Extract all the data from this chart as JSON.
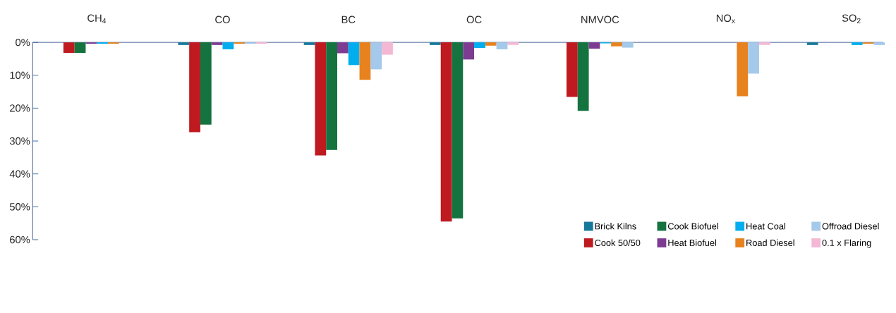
{
  "chart_data": {
    "type": "bar",
    "categories": [
      "CH$_{4}$",
      "CO",
      "BC",
      "OC",
      "NMVOC",
      "NO$_{x}$",
      "SO$_{2}$"
    ],
    "series": [
      {
        "name": "Brick Kilns",
        "color": "#17799a",
        "values": [
          0,
          0.8,
          0.8,
          0.8,
          0,
          0,
          0.8
        ]
      },
      {
        "name": "Cook 50/50",
        "color": "#be1a20",
        "values": [
          3.2,
          27.3,
          34.4,
          54.5,
          16.6,
          0,
          0
        ]
      },
      {
        "name": "Cook Biofuel",
        "color": "#14733e",
        "values": [
          3.2,
          25,
          32.7,
          53.5,
          20.8,
          0,
          0
        ]
      },
      {
        "name": "Heat Biofuel",
        "color": "#7d3c92",
        "values": [
          0.4,
          0.8,
          3.3,
          5.2,
          1.9,
          0,
          0
        ]
      },
      {
        "name": "Heat Coal",
        "color": "#00aeef",
        "values": [
          0.4,
          2.1,
          6.9,
          1.7,
          0.3,
          0,
          0.8
        ]
      },
      {
        "name": "Road Diesel",
        "color": "#e8821e",
        "values": [
          0.4,
          0.4,
          11.4,
          1.0,
          1.2,
          16.4,
          0.4
        ]
      },
      {
        "name": "Offroad Diesel",
        "color": "#a4c9ea",
        "values": [
          0,
          0.4,
          8.2,
          2.1,
          1.6,
          9.5,
          0.8
        ]
      },
      {
        "name": "0.1 x Flaring",
        "color": "#f4b8d4",
        "values": [
          0,
          0.4,
          3.8,
          0.8,
          0,
          0.8,
          0
        ]
      }
    ],
    "ylim": [
      60,
      0
    ],
    "yticks": [
      {
        "value": 0,
        "label": "0%"
      },
      {
        "value": 10,
        "label": "10%"
      },
      {
        "value": 20,
        "label": "20%"
      },
      {
        "value": 30,
        "label": "30%"
      },
      {
        "value": 40,
        "label": "40%"
      },
      {
        "value": 50,
        "label": "50%"
      },
      {
        "value": 60,
        "label": "60%"
      }
    ],
    "legend": "bottom right"
  }
}
